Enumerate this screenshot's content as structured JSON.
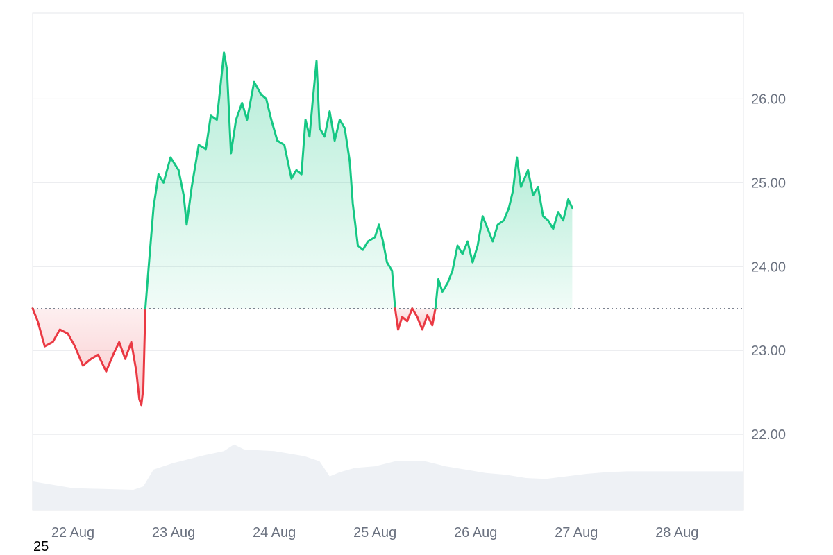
{
  "footnote": "25",
  "chart_data": {
    "type": "area",
    "title": "",
    "xlabel": "",
    "ylabel": "",
    "baseline": 23.5,
    "ylim": [
      21.1,
      27.02
    ],
    "xlim": [
      21.6,
      28.66
    ],
    "y_ticks": [
      "22.00",
      "23.00",
      "24.00",
      "25.00",
      "26.00"
    ],
    "x_ticks": [
      {
        "label": "22 Aug",
        "x": 22
      },
      {
        "label": "23 Aug",
        "x": 23
      },
      {
        "label": "24 Aug",
        "x": 24
      },
      {
        "label": "25 Aug",
        "x": 25
      },
      {
        "label": "26 Aug",
        "x": 26
      },
      {
        "label": "27 Aug",
        "x": 27
      },
      {
        "label": "28 Aug",
        "x": 28
      }
    ],
    "colors": {
      "up": "#16c784",
      "down": "#ea3943",
      "up_fill": "#16c784",
      "down_fill": "#ea3943",
      "volume": "#eef1f5",
      "grid": "#e5e7eb",
      "baseline": "#6b7280"
    },
    "series": [
      {
        "values": [
          [
            21.6,
            23.5
          ],
          [
            21.65,
            23.35
          ],
          [
            21.72,
            23.05
          ],
          [
            21.8,
            23.1
          ],
          [
            21.87,
            23.25
          ],
          [
            21.95,
            23.2
          ],
          [
            22.02,
            23.05
          ],
          [
            22.1,
            22.82
          ],
          [
            22.18,
            22.9
          ],
          [
            22.25,
            22.95
          ],
          [
            22.33,
            22.75
          ],
          [
            22.4,
            22.95
          ],
          [
            22.46,
            23.1
          ],
          [
            22.52,
            22.9
          ],
          [
            22.58,
            23.1
          ],
          [
            22.63,
            22.75
          ],
          [
            22.66,
            22.42
          ],
          [
            22.68,
            22.35
          ],
          [
            22.7,
            22.55
          ],
          [
            22.72,
            23.5
          ],
          [
            22.76,
            24.1
          ],
          [
            22.8,
            24.7
          ],
          [
            22.85,
            25.1
          ],
          [
            22.9,
            25.0
          ],
          [
            22.97,
            25.3
          ],
          [
            23.05,
            25.15
          ],
          [
            23.1,
            24.85
          ],
          [
            23.13,
            24.5
          ],
          [
            23.18,
            24.95
          ],
          [
            23.25,
            25.45
          ],
          [
            23.32,
            25.4
          ],
          [
            23.37,
            25.8
          ],
          [
            23.43,
            25.75
          ],
          [
            23.47,
            26.2
          ],
          [
            23.5,
            26.55
          ],
          [
            23.53,
            26.35
          ],
          [
            23.57,
            25.35
          ],
          [
            23.62,
            25.75
          ],
          [
            23.68,
            25.95
          ],
          [
            23.73,
            25.75
          ],
          [
            23.8,
            26.2
          ],
          [
            23.87,
            26.05
          ],
          [
            23.92,
            26.0
          ],
          [
            23.97,
            25.75
          ],
          [
            24.03,
            25.5
          ],
          [
            24.1,
            25.45
          ],
          [
            24.17,
            25.05
          ],
          [
            24.22,
            25.15
          ],
          [
            24.27,
            25.1
          ],
          [
            24.31,
            25.75
          ],
          [
            24.35,
            25.55
          ],
          [
            24.38,
            25.95
          ],
          [
            24.42,
            26.45
          ],
          [
            24.45,
            25.65
          ],
          [
            24.5,
            25.55
          ],
          [
            24.55,
            25.85
          ],
          [
            24.6,
            25.5
          ],
          [
            24.65,
            25.75
          ],
          [
            24.7,
            25.65
          ],
          [
            24.75,
            25.25
          ],
          [
            24.78,
            24.75
          ],
          [
            24.83,
            24.25
          ],
          [
            24.88,
            24.2
          ],
          [
            24.93,
            24.3
          ],
          [
            25.0,
            24.35
          ],
          [
            25.04,
            24.5
          ],
          [
            25.08,
            24.3
          ],
          [
            25.12,
            24.05
          ],
          [
            25.17,
            23.95
          ],
          [
            25.2,
            23.5
          ],
          [
            25.23,
            23.25
          ],
          [
            25.27,
            23.4
          ],
          [
            25.32,
            23.35
          ],
          [
            25.37,
            23.5
          ],
          [
            25.42,
            23.4
          ],
          [
            25.47,
            23.25
          ],
          [
            25.52,
            23.42
          ],
          [
            25.57,
            23.3
          ],
          [
            25.6,
            23.5
          ],
          [
            25.63,
            23.85
          ],
          [
            25.67,
            23.7
          ],
          [
            25.72,
            23.8
          ],
          [
            25.77,
            23.95
          ],
          [
            25.82,
            24.25
          ],
          [
            25.87,
            24.15
          ],
          [
            25.92,
            24.3
          ],
          [
            25.97,
            24.05
          ],
          [
            26.02,
            24.25
          ],
          [
            26.07,
            24.6
          ],
          [
            26.12,
            24.45
          ],
          [
            26.17,
            24.3
          ],
          [
            26.22,
            24.5
          ],
          [
            26.28,
            24.55
          ],
          [
            26.33,
            24.7
          ],
          [
            26.37,
            24.9
          ],
          [
            26.41,
            25.3
          ],
          [
            26.45,
            24.95
          ],
          [
            26.52,
            25.15
          ],
          [
            26.57,
            24.85
          ],
          [
            26.62,
            24.95
          ],
          [
            26.67,
            24.6
          ],
          [
            26.72,
            24.55
          ],
          [
            26.77,
            24.45
          ],
          [
            26.82,
            24.65
          ],
          [
            26.87,
            24.55
          ],
          [
            26.92,
            24.8
          ],
          [
            26.96,
            24.7
          ]
        ]
      }
    ],
    "volume": [
      [
        21.6,
        21.44
      ],
      [
        21.8,
        21.4
      ],
      [
        22.0,
        21.36
      ],
      [
        22.3,
        21.35
      ],
      [
        22.6,
        21.34
      ],
      [
        22.7,
        21.38
      ],
      [
        22.8,
        21.58
      ],
      [
        23.0,
        21.66
      ],
      [
        23.3,
        21.75
      ],
      [
        23.5,
        21.8
      ],
      [
        23.6,
        21.88
      ],
      [
        23.7,
        21.82
      ],
      [
        24.0,
        21.8
      ],
      [
        24.3,
        21.74
      ],
      [
        24.45,
        21.68
      ],
      [
        24.55,
        21.5
      ],
      [
        24.65,
        21.55
      ],
      [
        24.8,
        21.6
      ],
      [
        25.0,
        21.62
      ],
      [
        25.2,
        21.68
      ],
      [
        25.5,
        21.68
      ],
      [
        25.7,
        21.62
      ],
      [
        25.9,
        21.58
      ],
      [
        26.1,
        21.54
      ],
      [
        26.3,
        21.52
      ],
      [
        26.5,
        21.48
      ],
      [
        26.7,
        21.47
      ],
      [
        26.9,
        21.5
      ],
      [
        27.1,
        21.53
      ],
      [
        27.3,
        21.55
      ],
      [
        27.5,
        21.56
      ]
    ]
  }
}
